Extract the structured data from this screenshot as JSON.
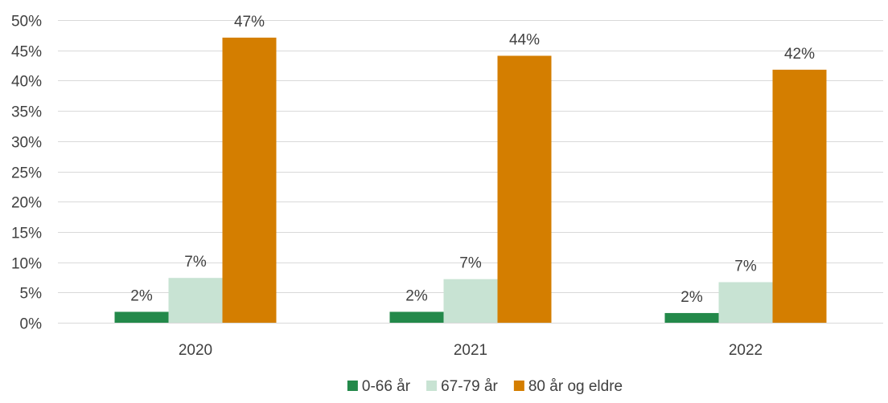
{
  "chart_data": {
    "type": "bar",
    "categories": [
      "2020",
      "2021",
      "2022"
    ],
    "series": [
      {
        "name": "0-66 år",
        "values": [
          1.8,
          1.8,
          1.6
        ],
        "labels": [
          "2%",
          "2%",
          "2%"
        ],
        "color": "#23894a"
      },
      {
        "name": "67-79 år",
        "values": [
          7.4,
          7.2,
          6.7
        ],
        "labels": [
          "7%",
          "7%",
          "7%"
        ],
        "color": "#c8e3d3"
      },
      {
        "name": "80 år og eldre",
        "values": [
          47.1,
          44.1,
          41.8
        ],
        "labels": [
          "47%",
          "44%",
          "42%"
        ],
        "color": "#d47e00"
      }
    ],
    "ylim": [
      0,
      50
    ],
    "y_ticks": [
      {
        "value": 0,
        "label": "0%"
      },
      {
        "value": 5,
        "label": "5%"
      },
      {
        "value": 10,
        "label": "10%"
      },
      {
        "value": 15,
        "label": "15%"
      },
      {
        "value": 20,
        "label": "20%"
      },
      {
        "value": 25,
        "label": "25%"
      },
      {
        "value": 30,
        "label": "30%"
      },
      {
        "value": 35,
        "label": "35%"
      },
      {
        "value": 40,
        "label": "40%"
      },
      {
        "value": 45,
        "label": "45%"
      },
      {
        "value": 50,
        "label": "50%"
      }
    ],
    "title": "",
    "xlabel": "",
    "ylabel": "",
    "grid": true,
    "legend_position": "bottom",
    "gridline_color": "#d9d9d9"
  }
}
